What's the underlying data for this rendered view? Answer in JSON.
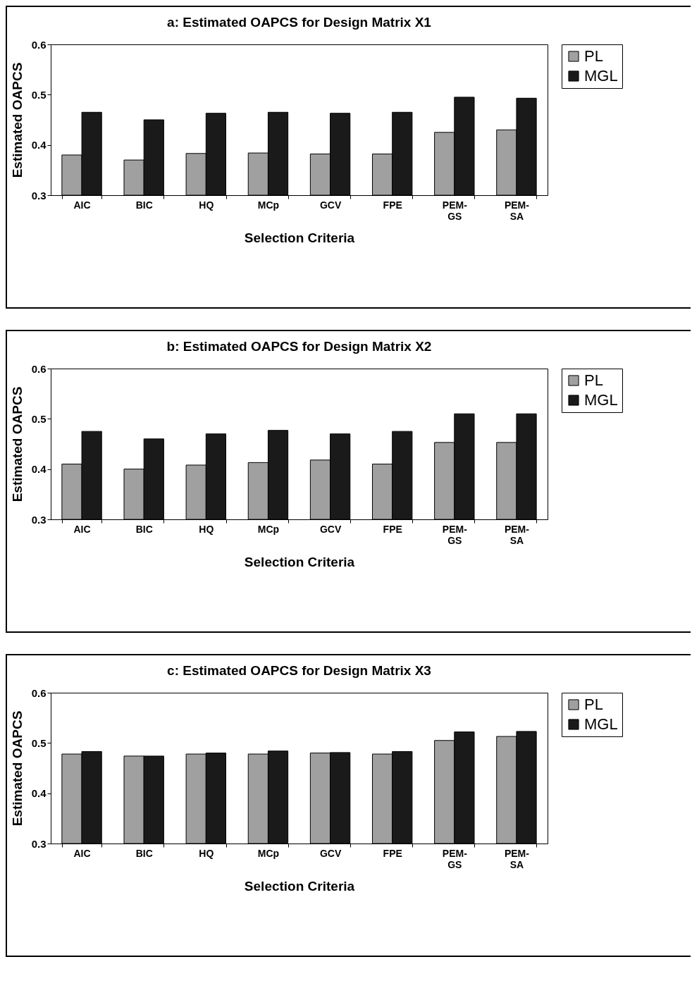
{
  "chart_data": [
    {
      "type": "bar",
      "title": "a: Estimated OAPCS for Design Matrix X1",
      "xlabel": "Selection Criteria",
      "ylabel": "Estimated OAPCS",
      "categories": [
        "AIC",
        "BIC",
        "HQ",
        "MCp",
        "GCV",
        "FPE",
        "PEM-GS",
        "PEM-SA"
      ],
      "series": [
        {
          "name": "PL",
          "color": "#a0a0a0",
          "values": [
            0.38,
            0.37,
            0.383,
            0.384,
            0.382,
            0.382,
            0.425,
            0.43
          ]
        },
        {
          "name": "MGL",
          "color": "#1a1a1a",
          "values": [
            0.465,
            0.45,
            0.463,
            0.465,
            0.463,
            0.465,
            0.495,
            0.493
          ]
        }
      ],
      "ylim": [
        0.3,
        0.6
      ],
      "yticks": [
        0.3,
        0.4,
        0.5,
        0.6
      ],
      "legend": "right",
      "grid": false
    },
    {
      "type": "bar",
      "title": "b: Estimated OAPCS for Design Matrix X2",
      "xlabel": "Selection Criteria",
      "ylabel": "Estimated OAPCS",
      "categories": [
        "AIC",
        "BIC",
        "HQ",
        "MCp",
        "GCV",
        "FPE",
        "PEM-GS",
        "PEM-SA"
      ],
      "series": [
        {
          "name": "PL",
          "color": "#a0a0a0",
          "values": [
            0.41,
            0.4,
            0.408,
            0.413,
            0.418,
            0.41,
            0.453,
            0.453
          ]
        },
        {
          "name": "MGL",
          "color": "#1a1a1a",
          "values": [
            0.475,
            0.46,
            0.47,
            0.477,
            0.47,
            0.475,
            0.51,
            0.51
          ]
        }
      ],
      "ylim": [
        0.3,
        0.6
      ],
      "yticks": [
        0.3,
        0.4,
        0.5,
        0.6
      ],
      "legend": "right",
      "grid": false
    },
    {
      "type": "bar",
      "title": "c: Estimated OAPCS for Design Matrix X3",
      "xlabel": "Selection Criteria",
      "ylabel": "Estimated OAPCS",
      "categories": [
        "AIC",
        "BIC",
        "HQ",
        "MCp",
        "GCV",
        "FPE",
        "PEM-GS",
        "PEM-SA"
      ],
      "series": [
        {
          "name": "PL",
          "color": "#a0a0a0",
          "values": [
            0.478,
            0.474,
            0.478,
            0.478,
            0.48,
            0.478,
            0.505,
            0.513
          ]
        },
        {
          "name": "MGL",
          "color": "#1a1a1a",
          "values": [
            0.483,
            0.474,
            0.48,
            0.484,
            0.481,
            0.483,
            0.522,
            0.523
          ]
        }
      ],
      "ylim": [
        0.3,
        0.6
      ],
      "yticks": [
        0.3,
        0.4,
        0.5,
        0.6
      ],
      "legend": "right",
      "grid": false
    }
  ]
}
